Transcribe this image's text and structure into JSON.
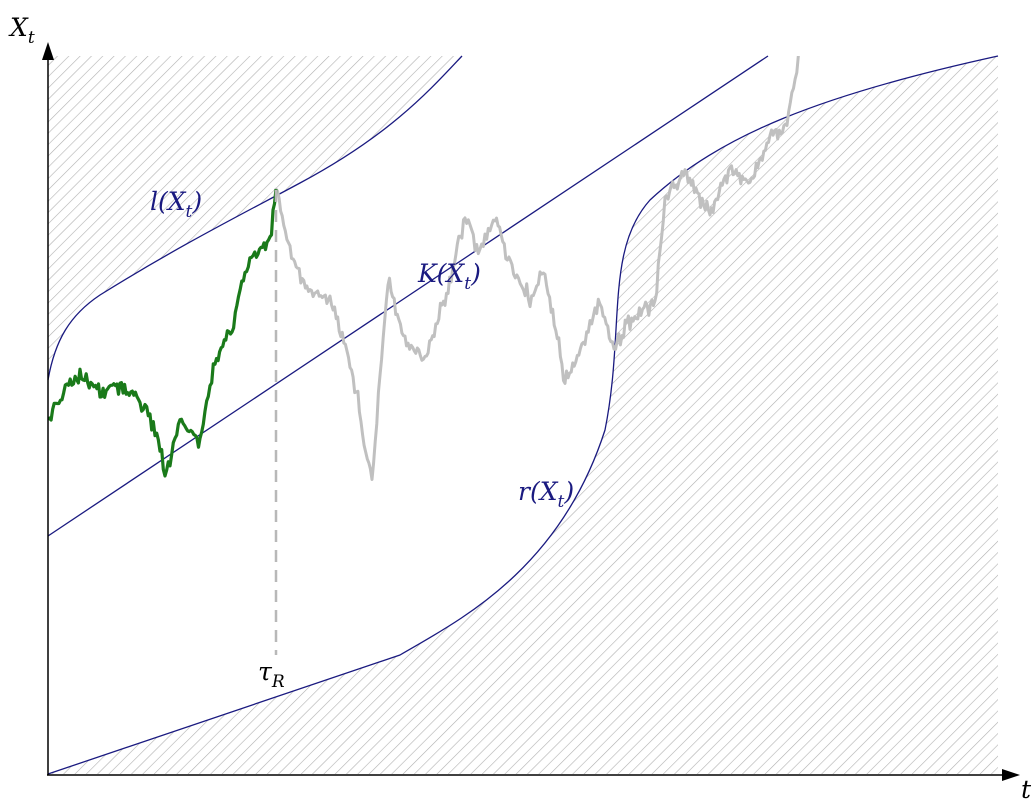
{
  "axes": {
    "y_label": "X",
    "y_label_sub": "t",
    "x_label": "t"
  },
  "curves": {
    "upper": {
      "label": "l(X",
      "sub": "t",
      "close": ")"
    },
    "middle": {
      "label": "K(X",
      "sub": "t",
      "close": ")"
    },
    "lower": {
      "label": "r(X",
      "sub": "t",
      "close": ")"
    }
  },
  "stopping_time": {
    "label": "τ",
    "sub": "R"
  },
  "colors": {
    "curve": "#1a1a80",
    "path_active": "#1a7a1a",
    "path_inactive": "#c0c0c0",
    "hatch": "#b0b0b0",
    "axis": "#000000"
  },
  "path": {
    "seed": 17,
    "steps_active": 360,
    "steps_total": 1200
  }
}
